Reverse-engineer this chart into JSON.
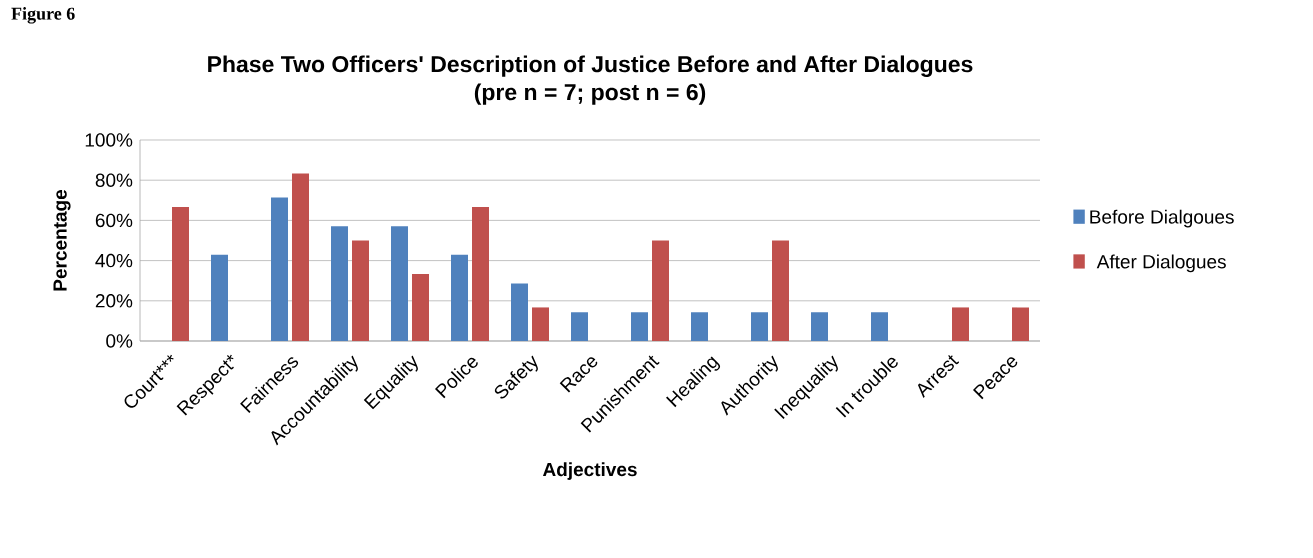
{
  "chart_data": {
    "type": "bar",
    "title": "Phase Two Officers' Description of Justice Before and After Dialogues",
    "subtitle": "(pre n = 7; post n = 6)",
    "xlabel": "Adjectives",
    "ylabel": "Percentage",
    "annotations": [
      "Figure 6"
    ],
    "categories": [
      "Court***",
      "Respect*",
      "Fairness",
      "Accountability",
      "Equality",
      "Police",
      "Safety",
      "Race",
      "Punishment",
      "Healing",
      "Authority",
      "Inequality",
      "In trouble",
      "Arrest",
      "Peace"
    ],
    "series": [
      {
        "name": "Before Dialgoues",
        "color": "#4f81bd",
        "values": [
          0,
          42.9,
          71.4,
          57.1,
          57.1,
          42.9,
          28.6,
          14.3,
          14.3,
          14.3,
          14.3,
          14.3,
          14.3,
          0,
          0
        ]
      },
      {
        "name": "After Dialogues",
        "color": "#c0504d",
        "values": [
          66.7,
          0,
          83.3,
          50,
          33.3,
          66.7,
          16.7,
          0,
          50,
          0,
          50,
          0,
          0,
          16.7,
          16.7
        ]
      }
    ],
    "ylim": [
      0,
      100
    ],
    "yticks": [
      {
        "value": 0,
        "label": "0%"
      },
      {
        "value": 20,
        "label": "20%"
      },
      {
        "value": 40,
        "label": "40%"
      },
      {
        "value": 60,
        "label": "60%"
      },
      {
        "value": 80,
        "label": "80%"
      },
      {
        "value": 100,
        "label": "100%"
      }
    ],
    "grid": "y",
    "legend": "right"
  }
}
